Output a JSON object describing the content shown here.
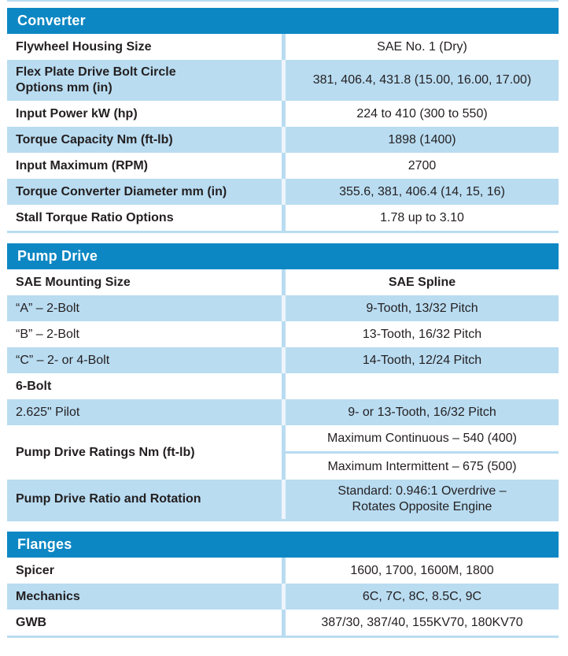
{
  "colors": {
    "section_header_bg": "#0d87c3",
    "section_header_text": "#ffffff",
    "row_alt_bg": "#b9dcf1",
    "row_bg": "#ffffff",
    "rule_line": "#b9dcf1",
    "divider_on_blue_row": "#edf5fb",
    "text": "#231f20"
  },
  "sections": [
    {
      "title": "Converter",
      "rows": [
        {
          "label": [
            "Flywheel Housing Size"
          ],
          "label_bold": true,
          "value_bold": false,
          "values": [
            [
              "SAE No. 1 (Dry)"
            ]
          ]
        },
        {
          "label": [
            "Flex Plate Drive Bolt Circle",
            "Options mm (in)"
          ],
          "label_bold": true,
          "value_bold": false,
          "values": [
            [
              "381, 406.4, 431.8 (15.00, 16.00, 17.00)"
            ]
          ]
        },
        {
          "label": [
            "Input Power kW (hp)"
          ],
          "label_bold": true,
          "value_bold": false,
          "values": [
            [
              "224 to 410 (300 to 550)"
            ]
          ]
        },
        {
          "label": [
            "Torque Capacity Nm (ft-lb)"
          ],
          "label_bold": true,
          "value_bold": false,
          "values": [
            [
              "1898 (1400)"
            ]
          ]
        },
        {
          "label": [
            "Input Maximum (RPM)"
          ],
          "label_bold": true,
          "value_bold": false,
          "values": [
            [
              "2700"
            ]
          ]
        },
        {
          "label": [
            "Torque Converter Diameter mm (in)"
          ],
          "label_bold": true,
          "value_bold": false,
          "values": [
            [
              "355.6, 381, 406.4 (14, 15, 16)"
            ]
          ]
        },
        {
          "label": [
            "Stall Torque Ratio Options"
          ],
          "label_bold": true,
          "value_bold": false,
          "values": [
            [
              "1.78 up to 3.10"
            ]
          ]
        }
      ]
    },
    {
      "title": "Pump Drive",
      "rows": [
        {
          "label": [
            "SAE Mounting Size"
          ],
          "label_bold": true,
          "value_bold": true,
          "values": [
            [
              "SAE Spline"
            ]
          ]
        },
        {
          "label": [
            "“A” – 2-Bolt"
          ],
          "label_bold": false,
          "value_bold": false,
          "values": [
            [
              "9-Tooth, 13/32 Pitch"
            ]
          ]
        },
        {
          "label": [
            "“B” – 2-Bolt"
          ],
          "label_bold": false,
          "value_bold": false,
          "values": [
            [
              "13-Tooth, 16/32 Pitch"
            ]
          ]
        },
        {
          "label": [
            "“C” – 2- or 4-Bolt"
          ],
          "label_bold": false,
          "value_bold": false,
          "values": [
            [
              "14-Tooth, 12/24 Pitch"
            ]
          ]
        },
        {
          "label": [
            "6-Bolt"
          ],
          "label_bold": true,
          "value_bold": false,
          "values": [
            []
          ]
        },
        {
          "label": [
            "2.625\" Pilot"
          ],
          "label_bold": false,
          "value_bold": false,
          "values": [
            [
              "9- or 13-Tooth, 16/32 Pitch"
            ]
          ]
        },
        {
          "label": [
            "Pump Drive Ratings Nm (ft-lb)"
          ],
          "label_bold": true,
          "value_bold": false,
          "values": [
            [
              "Maximum Continuous – 540 (400)"
            ],
            [
              "Maximum Intermittent – 675 (500)"
            ]
          ]
        },
        {
          "label": [
            "Pump Drive Ratio and Rotation"
          ],
          "label_bold": true,
          "value_bold": false,
          "values": [
            [
              "Standard: 0.946:1 Overdrive –",
              "Rotates Opposite Engine"
            ]
          ]
        }
      ]
    },
    {
      "title": "Flanges",
      "rows": [
        {
          "label": [
            "Spicer"
          ],
          "label_bold": true,
          "value_bold": false,
          "values": [
            [
              "1600, 1700, 1600M, 1800"
            ]
          ]
        },
        {
          "label": [
            "Mechanics"
          ],
          "label_bold": true,
          "value_bold": false,
          "values": [
            [
              "6C, 7C, 8C, 8.5C, 9C"
            ]
          ]
        },
        {
          "label": [
            "GWB"
          ],
          "label_bold": true,
          "value_bold": false,
          "values": [
            [
              "387/30, 387/40, 155KV70, 180KV70"
            ]
          ]
        }
      ]
    }
  ]
}
